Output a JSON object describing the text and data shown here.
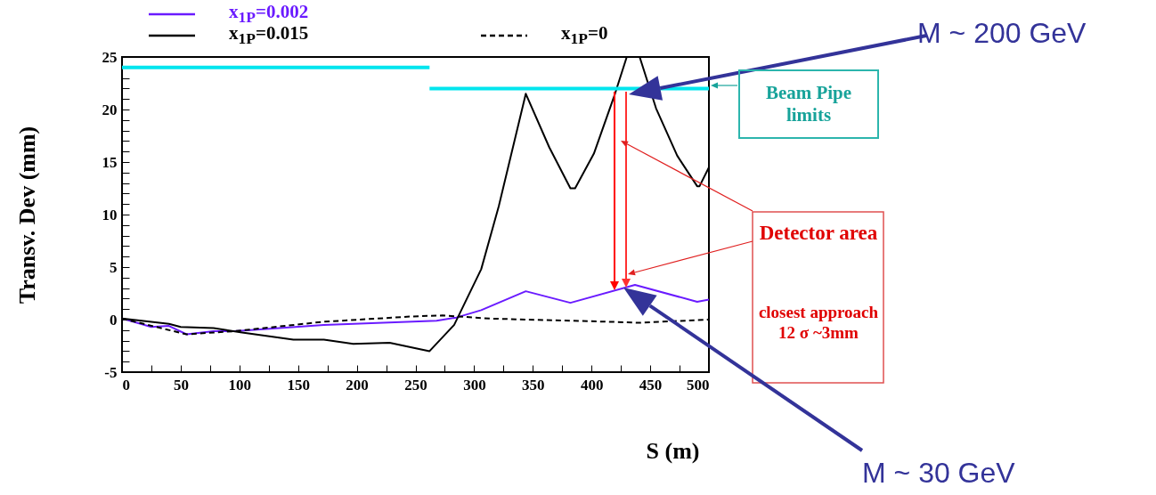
{
  "chart_data": {
    "type": "line",
    "xlabel": "S (m)",
    "ylabel": "Transv. Dev (mm)",
    "xlim": [
      0,
      500
    ],
    "ylim": [
      -5,
      25
    ],
    "xticks": [
      0,
      {
        "value": 25,
        "label": null
      },
      50,
      {
        "value": 75,
        "label": null
      },
      100,
      {
        "value": 125,
        "label": null
      },
      150,
      {
        "value": 175,
        "label": null
      },
      200,
      {
        "value": 225,
        "label": null
      },
      250,
      {
        "value": 275,
        "label": null
      },
      300,
      {
        "value": 325,
        "label": null
      },
      350,
      {
        "value": 375,
        "label": null
      },
      400,
      {
        "value": 425,
        "label": null
      },
      450,
      {
        "value": 475,
        "label": null
      },
      500
    ],
    "yticks": [
      -5,
      {
        "value": -4,
        "label": null
      },
      {
        "value": -3,
        "label": null
      },
      {
        "value": -2,
        "label": null
      },
      {
        "value": -1,
        "label": null
      },
      0,
      {
        "value": 1,
        "label": null
      },
      {
        "value": 2,
        "label": null
      },
      {
        "value": 3,
        "label": null
      },
      {
        "value": 4,
        "label": null
      },
      5,
      {
        "value": 6,
        "label": null
      },
      {
        "value": 7,
        "label": null
      },
      {
        "value": 8,
        "label": null
      },
      {
        "value": 9,
        "label": null
      },
      10,
      {
        "value": 11,
        "label": null
      },
      {
        "value": 12,
        "label": null
      },
      {
        "value": 13,
        "label": null
      },
      {
        "value": 14,
        "label": null
      },
      15,
      {
        "value": 16,
        "label": null
      },
      {
        "value": 17,
        "label": null
      },
      {
        "value": 18,
        "label": null
      },
      {
        "value": 19,
        "label": null
      },
      20,
      {
        "value": 21,
        "label": null
      },
      {
        "value": 22,
        "label": null
      },
      {
        "value": 23,
        "label": null
      },
      {
        "value": 24,
        "label": null
      },
      25
    ],
    "legend": "top",
    "grid": false,
    "series": [
      {
        "name": "x$_{1P}$=0.002",
        "color": "#6a1bff",
        "x": [
          0,
          25,
          40,
          55,
          78,
          96,
          172,
          268,
          285,
          306,
          344,
          382,
          437,
          490,
          500
        ],
        "values": [
          0.1,
          -0.7,
          -0.6,
          -1.4,
          -1.1,
          -1.1,
          -0.5,
          -0.1,
          0.2,
          0.9,
          2.7,
          1.6,
          3.3,
          1.7,
          1.9
        ]
      },
      {
        "name": "x$_{1P}$=0.015",
        "color": "#000000",
        "x": [
          0,
          40,
          50,
          78,
          101,
          146,
          172,
          197,
          228,
          262,
          283,
          306,
          321,
          344,
          364,
          382,
          386,
          402,
          420,
          430,
          441,
          455,
          473,
          490,
          492,
          500
        ],
        "values": [
          0.1,
          -0.4,
          -0.7,
          -0.8,
          -1.2,
          -1.9,
          -1.9,
          -2.3,
          -2.2,
          -3.0,
          -0.5,
          4.8,
          10.8,
          21.5,
          16.4,
          12.5,
          12.5,
          15.8,
          21.5,
          25,
          25,
          20.1,
          15.6,
          12.7,
          12.7,
          14.5
        ]
      },
      {
        "name": "x$_{1P}$=0",
        "color": "#000000",
        "line_style": "dashed",
        "x": [
          0,
          55,
          96,
          172,
          247,
          273,
          313,
          414,
          440,
          500
        ],
        "values": [
          0.1,
          -1.4,
          -1.1,
          -0.2,
          0.3,
          0.4,
          0.1,
          -0.2,
          -0.3,
          0
        ]
      },
      {
        "color": "#00e5ee",
        "x": [
          0,
          262
        ],
        "values": [
          24,
          24
        ]
      },
      {
        "color": "#00e5ee",
        "x": [
          262,
          500
        ],
        "values": [
          22,
          22
        ]
      }
    ],
    "annotations": [
      "Beam Pipe limits",
      "Detector area",
      "closest approach 12 σ ~3mm",
      "M ~ 200 GeV",
      "M ~ 30 GeV"
    ]
  }
}
